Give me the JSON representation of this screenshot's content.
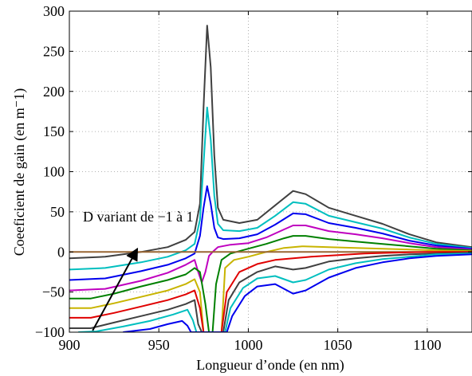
{
  "chart_data": {
    "type": "line",
    "title": "",
    "xlabel": "Longueur d’onde (en nm)",
    "ylabel": "Coeeficient de gain (en m⁻1)",
    "xlim": [
      900,
      1125
    ],
    "ylim": [
      -100,
      300
    ],
    "grid": true,
    "grid_style": "dotted",
    "xticks": [
      900,
      950,
      1000,
      1050,
      1100
    ],
    "yticks": [
      -100,
      -50,
      0,
      50,
      100,
      150,
      200,
      250,
      300
    ],
    "xtick_labels": [
      "900",
      "950",
      "1000",
      "1050",
      "1100"
    ],
    "ytick_labels": [
      "−100",
      "−50",
      "0",
      "50",
      "100",
      "150",
      "200",
      "250",
      "300"
    ],
    "annotation": {
      "text": "D variant de −1 à 1",
      "arrow_from": [
        913,
        -98
      ],
      "arrow_to": [
        938,
        4
      ]
    },
    "series": [
      {
        "color": "#404040",
        "points": [
          [
            900,
            -8
          ],
          [
            920,
            -6
          ],
          [
            940,
            0
          ],
          [
            955,
            6
          ],
          [
            965,
            15
          ],
          [
            970,
            25
          ],
          [
            973,
            60
          ],
          [
            975,
            180
          ],
          [
            977,
            282
          ],
          [
            979,
            230
          ],
          [
            981,
            120
          ],
          [
            983,
            55
          ],
          [
            986,
            40
          ],
          [
            995,
            36
          ],
          [
            1005,
            40
          ],
          [
            1015,
            58
          ],
          [
            1025,
            76
          ],
          [
            1032,
            72
          ],
          [
            1045,
            55
          ],
          [
            1060,
            45
          ],
          [
            1075,
            35
          ],
          [
            1090,
            22
          ],
          [
            1105,
            12
          ],
          [
            1125,
            6
          ]
        ]
      },
      {
        "color": "#00bfbf",
        "points": [
          [
            900,
            -22
          ],
          [
            920,
            -20
          ],
          [
            940,
            -13
          ],
          [
            955,
            -6
          ],
          [
            965,
            2
          ],
          [
            970,
            10
          ],
          [
            973,
            40
          ],
          [
            975,
            110
          ],
          [
            977,
            180
          ],
          [
            979,
            140
          ],
          [
            981,
            70
          ],
          [
            983,
            35
          ],
          [
            986,
            27
          ],
          [
            995,
            26
          ],
          [
            1005,
            30
          ],
          [
            1015,
            45
          ],
          [
            1025,
            62
          ],
          [
            1032,
            60
          ],
          [
            1045,
            45
          ],
          [
            1060,
            37
          ],
          [
            1075,
            29
          ],
          [
            1090,
            18
          ],
          [
            1105,
            10
          ],
          [
            1125,
            5
          ]
        ]
      },
      {
        "color": "#0000ee",
        "points": [
          [
            900,
            -35
          ],
          [
            920,
            -33
          ],
          [
            940,
            -24
          ],
          [
            955,
            -16
          ],
          [
            965,
            -8
          ],
          [
            970,
            -2
          ],
          [
            973,
            20
          ],
          [
            975,
            55
          ],
          [
            977,
            82
          ],
          [
            979,
            60
          ],
          [
            981,
            30
          ],
          [
            983,
            18
          ],
          [
            986,
            16
          ],
          [
            995,
            17
          ],
          [
            1005,
            22
          ],
          [
            1015,
            34
          ],
          [
            1025,
            48
          ],
          [
            1032,
            47
          ],
          [
            1045,
            36
          ],
          [
            1060,
            30
          ],
          [
            1075,
            23
          ],
          [
            1090,
            14
          ],
          [
            1105,
            8
          ],
          [
            1125,
            4
          ]
        ]
      },
      {
        "color": "#bf00bf",
        "points": [
          [
            900,
            -48
          ],
          [
            920,
            -46
          ],
          [
            940,
            -36
          ],
          [
            955,
            -26
          ],
          [
            965,
            -16
          ],
          [
            970,
            -10
          ],
          [
            972,
            -25
          ],
          [
            974,
            -38
          ],
          [
            976,
            -25
          ],
          [
            978,
            -5
          ],
          [
            980,
            0
          ],
          [
            983,
            6
          ],
          [
            990,
            9
          ],
          [
            1000,
            11
          ],
          [
            1010,
            18
          ],
          [
            1020,
            28
          ],
          [
            1025,
            33
          ],
          [
            1032,
            33
          ],
          [
            1045,
            26
          ],
          [
            1060,
            22
          ],
          [
            1075,
            17
          ],
          [
            1090,
            11
          ],
          [
            1105,
            6
          ],
          [
            1125,
            3
          ]
        ]
      },
      {
        "color": "#008000",
        "points": [
          [
            900,
            -58
          ],
          [
            912,
            -58
          ],
          [
            925,
            -52
          ],
          [
            940,
            -43
          ],
          [
            955,
            -35
          ],
          [
            965,
            -28
          ],
          [
            970,
            -20
          ],
          [
            973,
            -25
          ],
          [
            976,
            -65
          ],
          [
            978,
            -100
          ],
          [
            980,
            -100
          ],
          [
            982,
            -40
          ],
          [
            985,
            -10
          ],
          [
            990,
            -2
          ],
          [
            1000,
            4
          ],
          [
            1010,
            10
          ],
          [
            1020,
            17
          ],
          [
            1025,
            20
          ],
          [
            1032,
            20
          ],
          [
            1045,
            16
          ],
          [
            1060,
            13
          ],
          [
            1075,
            10
          ],
          [
            1090,
            7
          ],
          [
            1105,
            4
          ],
          [
            1125,
            2
          ]
        ]
      },
      {
        "color": "#c8b400",
        "points": [
          [
            900,
            -70
          ],
          [
            912,
            -70
          ],
          [
            925,
            -64
          ],
          [
            940,
            -56
          ],
          [
            955,
            -48
          ],
          [
            965,
            -40
          ],
          [
            970,
            -34
          ],
          [
            973,
            -50
          ],
          [
            975,
            -100
          ],
          [
            985,
            -100
          ],
          [
            987,
            -20
          ],
          [
            992,
            -10
          ],
          [
            1000,
            -6
          ],
          [
            1010,
            0
          ],
          [
            1020,
            5
          ],
          [
            1030,
            7
          ],
          [
            1045,
            6
          ],
          [
            1060,
            5
          ],
          [
            1075,
            4
          ],
          [
            1090,
            3
          ],
          [
            1105,
            2
          ],
          [
            1125,
            1
          ]
        ]
      },
      {
        "color": "#996633",
        "points": [
          [
            900,
            0
          ],
          [
            1125,
            0
          ]
        ]
      },
      {
        "color": "#e00000",
        "points": [
          [
            900,
            -82
          ],
          [
            912,
            -82
          ],
          [
            925,
            -76
          ],
          [
            940,
            -68
          ],
          [
            955,
            -60
          ],
          [
            965,
            -53
          ],
          [
            970,
            -48
          ],
          [
            973,
            -70
          ],
          [
            975,
            -100
          ],
          [
            985,
            -100
          ],
          [
            988,
            -50
          ],
          [
            995,
            -25
          ],
          [
            1005,
            -15
          ],
          [
            1015,
            -10
          ],
          [
            1025,
            -8
          ],
          [
            1035,
            -6
          ],
          [
            1050,
            -4
          ],
          [
            1065,
            -2
          ],
          [
            1080,
            -1
          ],
          [
            1100,
            0
          ],
          [
            1125,
            0
          ]
        ]
      },
      {
        "color": "#404040",
        "points": [
          [
            900,
            -95
          ],
          [
            912,
            -95
          ],
          [
            925,
            -88
          ],
          [
            940,
            -80
          ],
          [
            955,
            -72
          ],
          [
            965,
            -65
          ],
          [
            970,
            -60
          ],
          [
            972,
            -90
          ],
          [
            974,
            -100
          ],
          [
            986,
            -100
          ],
          [
            989,
            -60
          ],
          [
            995,
            -38
          ],
          [
            1005,
            -25
          ],
          [
            1015,
            -18
          ],
          [
            1025,
            -22
          ],
          [
            1032,
            -20
          ],
          [
            1045,
            -12
          ],
          [
            1060,
            -8
          ],
          [
            1075,
            -5
          ],
          [
            1090,
            -3
          ],
          [
            1105,
            -2
          ],
          [
            1125,
            -1
          ]
        ]
      },
      {
        "color": "#00bfbf",
        "points": [
          [
            905,
            -100
          ],
          [
            915,
            -99
          ],
          [
            930,
            -93
          ],
          [
            945,
            -86
          ],
          [
            958,
            -78
          ],
          [
            966,
            -72
          ],
          [
            969,
            -85
          ],
          [
            971,
            -100
          ],
          [
            987,
            -100
          ],
          [
            990,
            -70
          ],
          [
            997,
            -45
          ],
          [
            1005,
            -33
          ],
          [
            1015,
            -30
          ],
          [
            1025,
            -38
          ],
          [
            1032,
            -35
          ],
          [
            1045,
            -22
          ],
          [
            1060,
            -14
          ],
          [
            1075,
            -9
          ],
          [
            1090,
            -6
          ],
          [
            1105,
            -3
          ],
          [
            1125,
            -2
          ]
        ]
      },
      {
        "color": "#0000ee",
        "points": [
          [
            930,
            -100
          ],
          [
            945,
            -96
          ],
          [
            955,
            -90
          ],
          [
            963,
            -86
          ],
          [
            966,
            -92
          ],
          [
            968,
            -100
          ],
          [
            988,
            -100
          ],
          [
            991,
            -80
          ],
          [
            998,
            -55
          ],
          [
            1005,
            -43
          ],
          [
            1015,
            -40
          ],
          [
            1025,
            -52
          ],
          [
            1032,
            -48
          ],
          [
            1045,
            -32
          ],
          [
            1060,
            -20
          ],
          [
            1075,
            -13
          ],
          [
            1090,
            -8
          ],
          [
            1105,
            -5
          ],
          [
            1125,
            -3
          ]
        ]
      }
    ]
  }
}
